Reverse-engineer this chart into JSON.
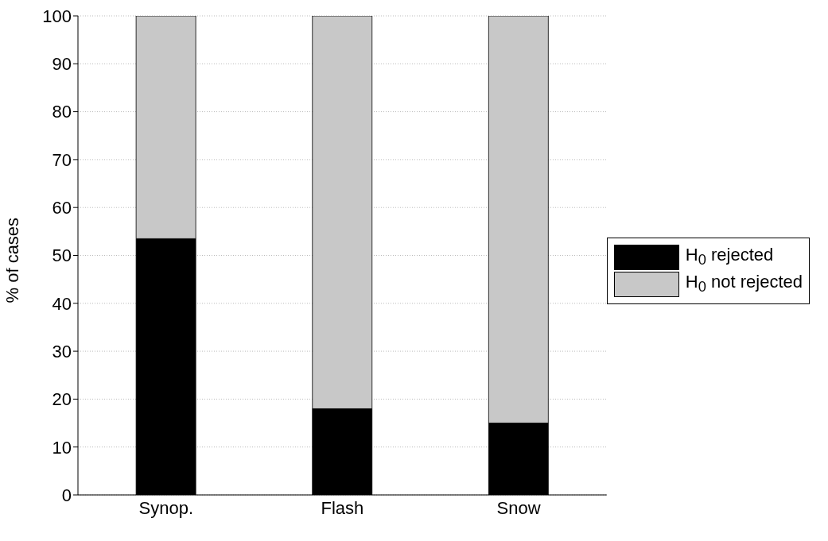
{
  "chart_data": {
    "type": "bar",
    "stacked": true,
    "ylabel": "% of cases",
    "categories": [
      "Synop.",
      "Flash",
      "Snow"
    ],
    "series": [
      {
        "name": "H$_{0}$ rejected",
        "color": "#000000",
        "values": [
          53.5,
          18,
          15
        ]
      },
      {
        "name": "H$_{0}$ not rejected",
        "color": "#c8c8c8",
        "values": [
          46.5,
          82,
          85
        ]
      }
    ],
    "ylim": [
      0,
      100
    ],
    "yticks": [
      0,
      10,
      20,
      30,
      40,
      50,
      60,
      70,
      80,
      90,
      100
    ],
    "grid": "y",
    "legend": "right"
  }
}
